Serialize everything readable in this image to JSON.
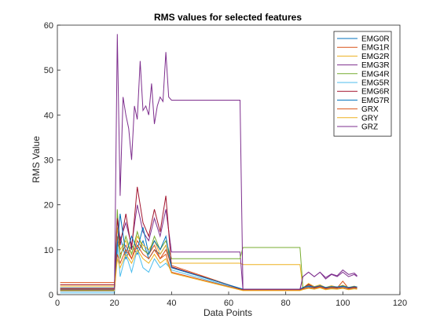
{
  "chart_data": {
    "type": "line",
    "title": "RMS values for selected features",
    "xlabel": "Data Points",
    "ylabel": "RMS Value",
    "xlim": [
      0,
      120
    ],
    "ylim": [
      0,
      60
    ],
    "xticks": [
      0,
      20,
      40,
      60,
      80,
      100,
      120
    ],
    "yticks": [
      0,
      10,
      20,
      30,
      40,
      50,
      60
    ],
    "grid": false,
    "legend_position": "top-right",
    "series": [
      {
        "name": "EMG0R",
        "color": "#0072BD",
        "x": [
          1,
          20,
          21,
          22,
          24,
          26,
          28,
          30,
          32,
          34,
          36,
          38,
          40,
          65,
          85,
          86,
          88,
          90,
          92,
          94,
          96,
          98,
          100,
          102,
          104,
          105
        ],
        "y": [
          0.8,
          0.8,
          10,
          13,
          8,
          11,
          9,
          12,
          8,
          10,
          9,
          11,
          6,
          1.2,
          1.2,
          1.5,
          1.8,
          1.6,
          1.9,
          1.5,
          1.7,
          1.6,
          1.8,
          1.5,
          1.7,
          1.6
        ]
      },
      {
        "name": "EMG1R",
        "color": "#D95319",
        "x": [
          1,
          20,
          21,
          22,
          24,
          26,
          28,
          30,
          32,
          34,
          36,
          38,
          40,
          65,
          85,
          86,
          88,
          90,
          92,
          94,
          96,
          98,
          100,
          102,
          104,
          105
        ],
        "y": [
          2.7,
          2.7,
          13,
          9,
          11,
          8,
          12,
          10,
          9,
          11,
          8,
          10,
          6.5,
          1.1,
          1.1,
          1.4,
          2.0,
          1.5,
          1.8,
          1.4,
          1.6,
          1.5,
          3.0,
          1.4,
          1.6,
          1.5
        ]
      },
      {
        "name": "EMG2R",
        "color": "#EDB120",
        "x": [
          1,
          20,
          21,
          22,
          24,
          26,
          28,
          30,
          32,
          34,
          36,
          38,
          40,
          64,
          65,
          85,
          86,
          88,
          90,
          92,
          94,
          96,
          98,
          100,
          102,
          104,
          105
        ],
        "y": [
          1.9,
          1.9,
          15,
          10,
          12,
          9,
          13,
          11,
          10,
          12,
          9,
          11,
          7,
          7,
          6.7,
          6.7,
          1.5,
          2.5,
          1.8,
          2.2,
          1.6,
          2.0,
          1.7,
          2.1,
          1.6,
          1.9,
          1.7
        ]
      },
      {
        "name": "EMG3R",
        "color": "#7E2F8E",
        "x": [
          1,
          20,
          21,
          22,
          24,
          26,
          28,
          30,
          32,
          34,
          36,
          38,
          40,
          64,
          65,
          85,
          86,
          88,
          90,
          92,
          94,
          96,
          98,
          100,
          102,
          104,
          105
        ],
        "y": [
          1.0,
          1.0,
          18,
          12,
          16,
          11,
          20,
          14,
          12,
          17,
          13,
          19,
          9.5,
          9.5,
          1.0,
          1.0,
          4,
          5,
          4,
          5,
          3.5,
          4.5,
          4,
          5,
          4,
          4.5,
          4
        ]
      },
      {
        "name": "EMG4R",
        "color": "#77AC30",
        "x": [
          1,
          20,
          21,
          22,
          24,
          26,
          28,
          30,
          32,
          34,
          36,
          38,
          40,
          64,
          65,
          85,
          86,
          88,
          90,
          92,
          94,
          96,
          98,
          100,
          102,
          104,
          105
        ],
        "y": [
          1.1,
          1.1,
          19,
          8,
          13,
          9,
          14,
          10,
          9,
          13,
          10,
          12,
          8,
          8,
          10.5,
          10.5,
          1.6,
          2.2,
          1.7,
          2.0,
          1.6,
          1.8,
          1.7,
          2.0,
          1.6,
          1.8,
          1.7
        ]
      },
      {
        "name": "EMG5R",
        "color": "#4DBEEE",
        "x": [
          1,
          20,
          21,
          22,
          24,
          26,
          28,
          30,
          32,
          34,
          36,
          38,
          40,
          65,
          85,
          86,
          88,
          90,
          92,
          94,
          96,
          98,
          100,
          102,
          104,
          105
        ],
        "y": [
          0.4,
          0.4,
          12,
          4,
          9,
          5,
          10,
          6,
          5,
          8,
          6,
          7,
          5.5,
          1.0,
          1.0,
          1.2,
          1.5,
          1.3,
          1.6,
          1.2,
          1.4,
          1.3,
          1.5,
          1.2,
          1.4,
          1.3
        ]
      },
      {
        "name": "EMG6R",
        "color": "#A2142F",
        "x": [
          1,
          20,
          21,
          22,
          24,
          26,
          28,
          30,
          32,
          34,
          36,
          38,
          40,
          65,
          85,
          86,
          88,
          90,
          92,
          94,
          96,
          98,
          100,
          102,
          104,
          105
        ],
        "y": [
          2.2,
          2.2,
          17,
          11,
          18,
          10,
          24,
          16,
          13,
          19,
          14,
          22,
          6.2,
          1.1,
          1.1,
          1.4,
          2.3,
          1.6,
          2.0,
          1.5,
          1.8,
          1.6,
          1.9,
          1.5,
          1.7,
          1.6
        ]
      },
      {
        "name": "EMG7R",
        "color": "#0072BD",
        "x": [
          1,
          20,
          21,
          22,
          24,
          26,
          28,
          30,
          32,
          34,
          36,
          38,
          40,
          65,
          85,
          86,
          88,
          90,
          92,
          94,
          96,
          98,
          100,
          102,
          104,
          105
        ],
        "y": [
          1.5,
          1.5,
          11,
          18,
          9,
          13,
          10,
          15,
          9,
          12,
          10,
          13,
          6,
          1.2,
          1.2,
          1.6,
          1.9,
          1.7,
          2.0,
          1.6,
          1.8,
          1.7,
          1.9,
          1.6,
          1.8,
          1.7
        ]
      },
      {
        "name": "GRX",
        "color": "#D95319",
        "x": [
          1,
          20,
          21,
          22,
          24,
          26,
          28,
          30,
          32,
          34,
          36,
          38,
          40,
          65,
          85,
          86,
          88,
          90,
          92,
          94,
          96,
          98,
          100,
          102,
          104,
          105
        ],
        "y": [
          1.4,
          1.4,
          9,
          7,
          10,
          8,
          11,
          9,
          8,
          10,
          8,
          9,
          5,
          1.0,
          1.0,
          1.3,
          1.6,
          1.4,
          1.7,
          1.3,
          1.5,
          1.4,
          1.6,
          1.3,
          1.5,
          1.4
        ]
      },
      {
        "name": "GRY",
        "color": "#EDB120",
        "x": [
          1,
          20,
          21,
          22,
          24,
          26,
          28,
          30,
          32,
          34,
          36,
          38,
          40,
          65,
          85,
          86,
          88,
          90,
          92,
          94,
          96,
          98,
          100,
          102,
          104,
          105
        ],
        "y": [
          0.9,
          0.9,
          8,
          6,
          9,
          7,
          10,
          8,
          7,
          9,
          7,
          8,
          4.8,
          0.9,
          0.9,
          1.1,
          1.4,
          1.2,
          1.5,
          1.1,
          1.3,
          1.2,
          1.4,
          1.1,
          1.3,
          1.2
        ]
      },
      {
        "name": "GRZ",
        "color": "#7E2F8E",
        "x": [
          1,
          20,
          21,
          22,
          23,
          24,
          25,
          26,
          27,
          28,
          29,
          30,
          31,
          32,
          33,
          34,
          35,
          36,
          37,
          38,
          39,
          40,
          64,
          65,
          85,
          86,
          88,
          90,
          92,
          94,
          96,
          98,
          100,
          102,
          104,
          105
        ],
        "y": [
          1.2,
          1.2,
          58,
          22,
          44,
          40,
          37,
          30,
          42,
          39,
          52,
          41,
          42,
          40,
          47,
          38,
          42,
          44,
          43,
          54,
          44,
          43.3,
          43.3,
          1.2,
          1.2,
          4,
          5,
          4,
          5,
          3.8,
          4.6,
          4.2,
          5.5,
          4.5,
          4.8,
          4.2
        ]
      }
    ]
  }
}
